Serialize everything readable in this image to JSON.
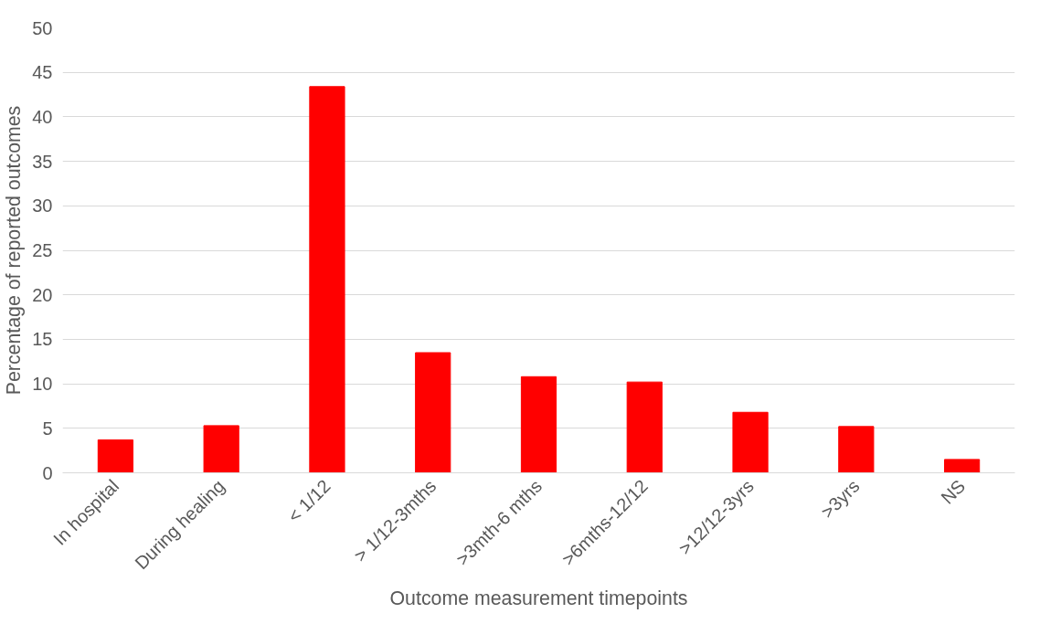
{
  "chart_data": {
    "type": "bar",
    "xlabel": "Outcome measurement timepoints",
    "ylabel": "Percentage of reported outcomes",
    "categories": [
      "In hospital",
      "During healing",
      "< 1/12",
      "> 1/12-3mths",
      ">3mth-6 mths",
      ">6mths-12/12",
      ">12/12-3yrs",
      ">3yrs",
      "NS"
    ],
    "values": [
      3.7,
      5.3,
      43.4,
      13.5,
      10.8,
      10.2,
      6.8,
      5.2,
      1.5
    ],
    "color": "#ff0000",
    "ylim": [
      0,
      50
    ],
    "yticks": [
      0,
      5,
      10,
      15,
      20,
      25,
      30,
      35,
      40,
      45,
      50
    ],
    "grid": "y"
  }
}
